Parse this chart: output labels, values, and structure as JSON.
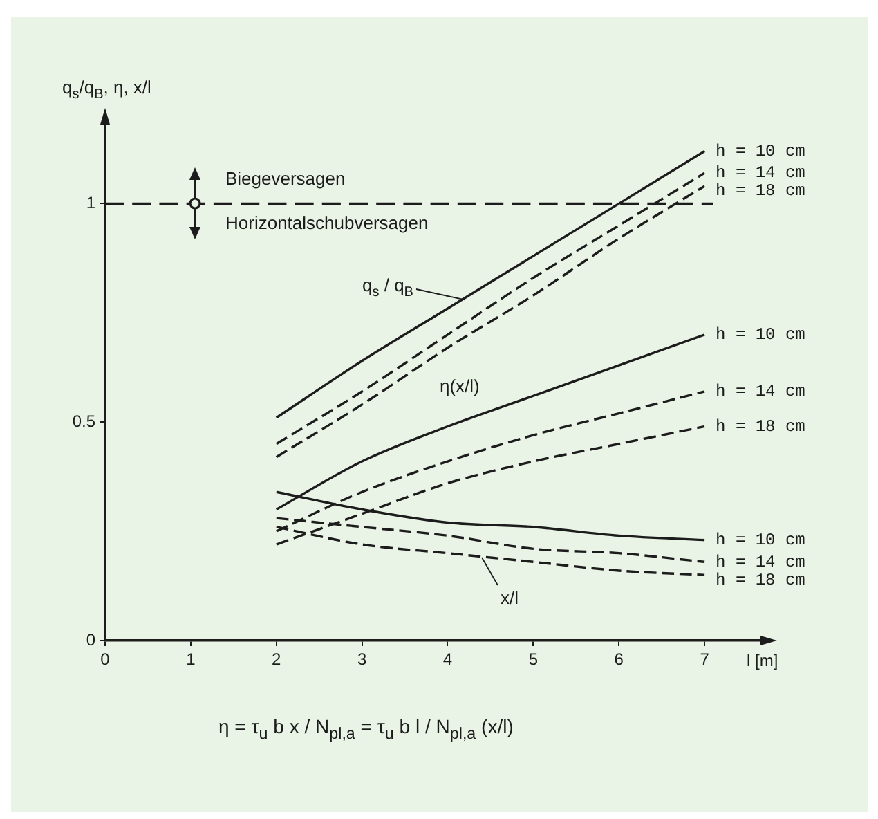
{
  "chart_data": {
    "type": "line",
    "xlabel": "l [m]",
    "ylabel": "q$_{s}$/q$_{B}$, η, x/l",
    "x": [
      2,
      3,
      4,
      5,
      6,
      7
    ],
    "series": [
      {
        "name": "h = 10 cm",
        "color": "#1c1c1c",
        "line_style": "solid",
        "values": [
          0.51,
          0.64,
          0.76,
          0.88,
          1.0,
          1.12
        ]
      },
      {
        "name": "h = 14 cm",
        "color": "#1c1c1c",
        "line_style": "dashed",
        "values": [
          0.45,
          0.57,
          0.7,
          0.83,
          0.95,
          1.07
        ]
      },
      {
        "name": "h = 18 cm",
        "color": "#1c1c1c",
        "line_style": "dashed",
        "values": [
          0.42,
          0.54,
          0.67,
          0.79,
          0.92,
          1.04
        ]
      },
      {
        "name": "h = 10 cm",
        "color": "#1c1c1c",
        "line_style": "solid",
        "values": [
          0.3,
          0.41,
          0.49,
          0.56,
          0.63,
          0.7
        ]
      },
      {
        "name": "h = 14 cm",
        "color": "#1c1c1c",
        "line_style": "dashed",
        "values": [
          0.25,
          0.34,
          0.41,
          0.47,
          0.52,
          0.57
        ]
      },
      {
        "name": "h = 18 cm",
        "color": "#1c1c1c",
        "line_style": "dashed",
        "values": [
          0.22,
          0.29,
          0.36,
          0.41,
          0.45,
          0.49
        ]
      },
      {
        "name": "h = 10 cm",
        "color": "#1c1c1c",
        "line_style": "solid",
        "values": [
          0.34,
          0.3,
          0.27,
          0.26,
          0.24,
          0.23
        ]
      },
      {
        "name": "h = 14 cm",
        "color": "#1c1c1c",
        "line_style": "dashed",
        "values": [
          0.28,
          0.26,
          0.24,
          0.21,
          0.2,
          0.18
        ]
      },
      {
        "name": "h = 18 cm",
        "color": "#1c1c1c",
        "line_style": "dashed",
        "values": [
          0.26,
          0.22,
          0.2,
          0.18,
          0.16,
          0.15
        ]
      }
    ],
    "xlim": [
      0,
      7.75
    ],
    "xticks": [
      0,
      1,
      2,
      3,
      4,
      5,
      6,
      7
    ],
    "ylim": [
      0,
      1.2
    ],
    "yticks": [
      0,
      0.5,
      1
    ],
    "grid": false,
    "legend": false,
    "marker": "none",
    "ref_lines": [
      {
        "axis": "y",
        "value": 1,
        "color": "#1c1c1c",
        "line_style": "dashed"
      }
    ],
    "annotations": [
      "Biegeversagen",
      "Horizontalschubversagen",
      {
        "text": "q$_{s}$ / q$_{B}$",
        "x": 4.2,
        "y": 0.78
      },
      "η(x/l)",
      {
        "text": "x/l",
        "x": 4.4,
        "y": 0.19
      },
      "η = τ$_{u}$ b x / N$_{pl,a}$ = τ$_{u}$ b l / N$_{pl,a}$ (x/l)"
    ]
  }
}
